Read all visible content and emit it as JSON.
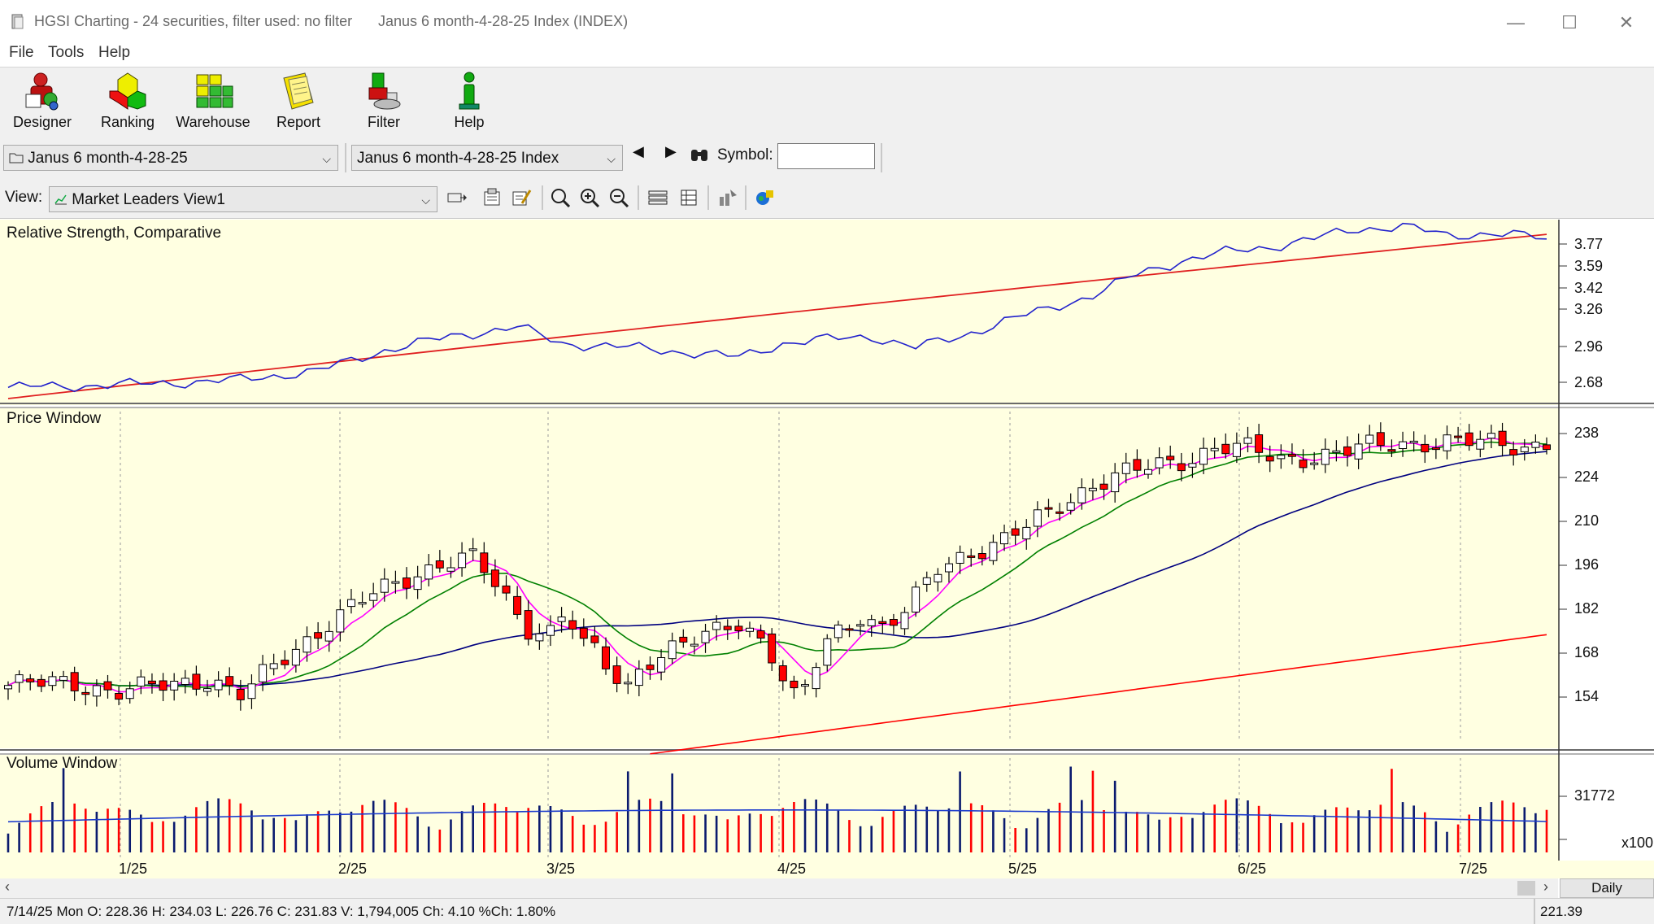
{
  "window": {
    "app_title": "HGSI Charting - 24 securities, filter used: no filter",
    "doc_title": "Janus 6 month-4-28-25 Index (INDEX)",
    "minimize": "—",
    "maximize": "☐",
    "close": "✕"
  },
  "menu": [
    "File",
    "Tools",
    "Help"
  ],
  "toolbar": [
    {
      "label": "Designer",
      "icon": "designer-icon"
    },
    {
      "label": "Ranking",
      "icon": "ranking-icon"
    },
    {
      "label": "Warehouse",
      "icon": "warehouse-icon"
    },
    {
      "label": "Report",
      "icon": "report-icon"
    },
    {
      "label": "Filter",
      "icon": "filter-icon"
    },
    {
      "label": "Help",
      "icon": "help-icon"
    }
  ],
  "selectors": {
    "list_value": "Janus 6 month-4-28-25",
    "security_value": "Janus 6 month-4-28-25 Index",
    "symbol_label": "Symbol:",
    "symbol_value": ""
  },
  "view": {
    "label": "View:",
    "value": "Market Leaders View1"
  },
  "panes": {
    "rs": {
      "title": "Relative Strength, Comparative",
      "scale": [
        "3.77",
        "3.59",
        "3.42",
        "3.26",
        "2.96",
        "2.68"
      ]
    },
    "price": {
      "title": "Price Window",
      "scale": [
        "238",
        "224",
        "210",
        "196",
        "182",
        "168",
        "154"
      ]
    },
    "volume": {
      "title": "Volume Window",
      "scale": [
        "31772"
      ],
      "multiplier": "x100"
    }
  },
  "x_axis": [
    "1/25",
    "2/25",
    "3/25",
    "4/25",
    "5/25",
    "6/25",
    "7/25"
  ],
  "period": "Daily",
  "status": {
    "quote": "7/14/25 Mon O: 228.36 H: 234.03 L: 226.76 C: 231.83 V: 1,794,005 Ch: 4.10 %Ch: 1.80%",
    "cursor_value": "221.39"
  },
  "colors": {
    "pane_bg": "#ffffe1",
    "up_candle": "#ffffff",
    "down_candle": "#ff0000",
    "ma_fast": "#ff00ff",
    "ma_mid": "#008000",
    "ma_slow": "#00007f",
    "ma_long": "#ff0000",
    "rs_line": "#2222cc",
    "vol_up": "#0a1a6e",
    "vol_down": "#ff0000"
  },
  "chart_data": [
    {
      "type": "line",
      "title": "Relative Strength, Comparative",
      "x": [
        "1/25",
        "2/25",
        "3/25",
        "4/25",
        "5/25",
        "6/25",
        "7/25"
      ],
      "ylim": [
        2.6,
        3.85
      ],
      "series": []
    },
    {
      "type": "candlestick",
      "title": "Price Window",
      "x": [
        "1/25",
        "2/25",
        "3/25",
        "4/25",
        "5/25",
        "6/25",
        "7/25"
      ],
      "ylim": [
        145,
        242
      ],
      "last": {
        "date": "7/14/25",
        "open": 228.36,
        "high": 234.03,
        "low": 226.76,
        "close": 231.83,
        "volume": 1794005
      }
    },
    {
      "type": "bar",
      "title": "Volume Window",
      "ylabel": "x100",
      "ylim": [
        0,
        40000
      ]
    }
  ]
}
